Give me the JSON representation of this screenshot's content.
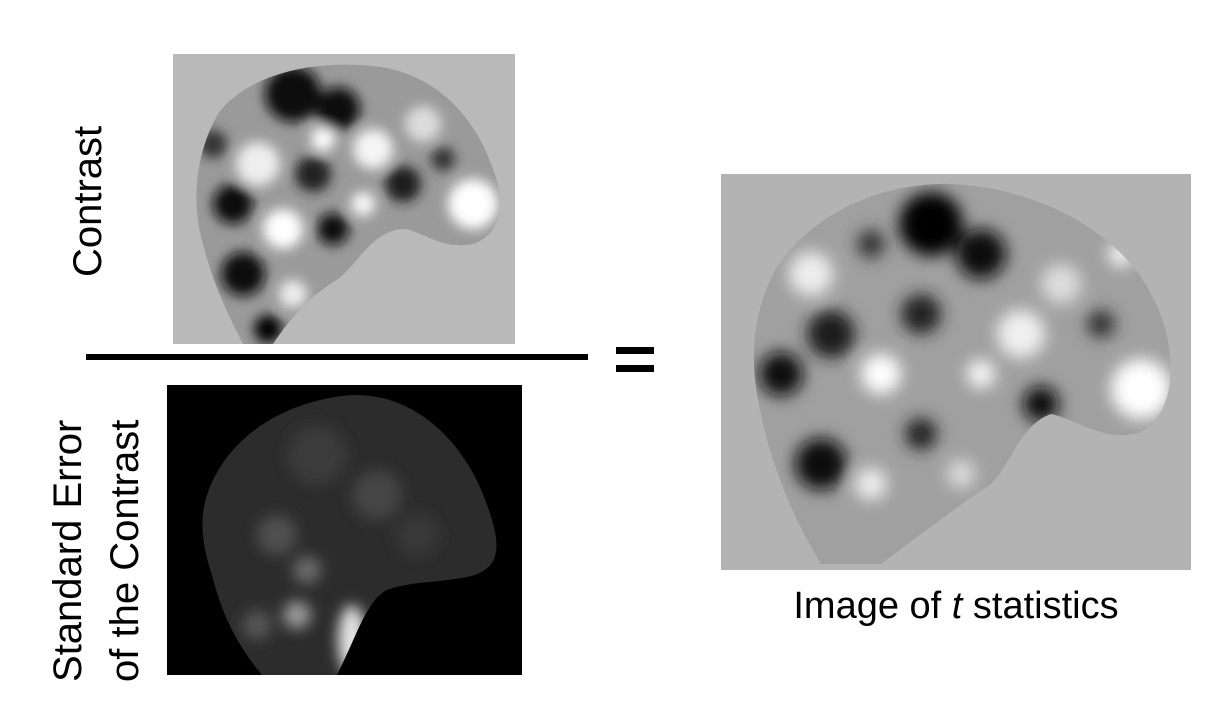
{
  "labels": {
    "contrast": "Contrast",
    "standard_error_line1": "Standard Error",
    "standard_error_line2": "of the Contrast",
    "t_caption_prefix": "Image of ",
    "t_caption_italic": "t",
    "t_caption_suffix": " statistics"
  },
  "images": {
    "contrast": "brain-contrast-map",
    "standard_error": "brain-standard-error-map",
    "t_statistics": "brain-t-statistic-map"
  },
  "operator": "="
}
